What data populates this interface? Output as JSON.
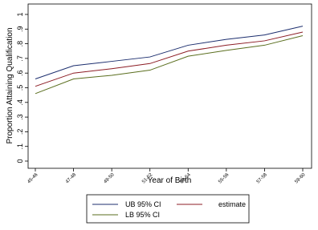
{
  "chart_data": {
    "type": "line",
    "xlabel": "Year of Birth",
    "ylabel": "Proportion Attaining Qualification",
    "categories": [
      "45-46",
      "47-48",
      "49-50",
      "51-52",
      "53-54",
      "55-56",
      "57-58",
      "59-60"
    ],
    "series": [
      {
        "name": "UB 95% CI",
        "color": "#1c2e6e",
        "values": [
          0.56,
          0.65,
          0.68,
          0.71,
          0.79,
          0.83,
          0.86,
          0.92
        ]
      },
      {
        "name": "estimate",
        "color": "#8c1c24",
        "values": [
          0.51,
          0.6,
          0.63,
          0.665,
          0.75,
          0.79,
          0.82,
          0.88
        ]
      },
      {
        "name": "LB 95% CI",
        "color": "#5a6e1e",
        "values": [
          0.46,
          0.56,
          0.585,
          0.62,
          0.715,
          0.755,
          0.79,
          0.855
        ]
      }
    ],
    "ylim": [
      0,
      1
    ],
    "yticks": [
      0,
      {
        "value": 0.1,
        "label": ".1"
      },
      {
        "value": 0.2,
        "label": ".2"
      },
      {
        "value": 0.3,
        "label": ".3"
      },
      {
        "value": 0.4,
        "label": ".4"
      },
      {
        "value": 0.5,
        "label": ".5"
      },
      {
        "value": 0.6,
        "label": ".6"
      },
      {
        "value": 0.7,
        "label": ".7"
      },
      {
        "value": 0.8,
        "label": ".8"
      },
      {
        "value": 0.9,
        "label": ".9"
      },
      1
    ],
    "grid": false
  }
}
